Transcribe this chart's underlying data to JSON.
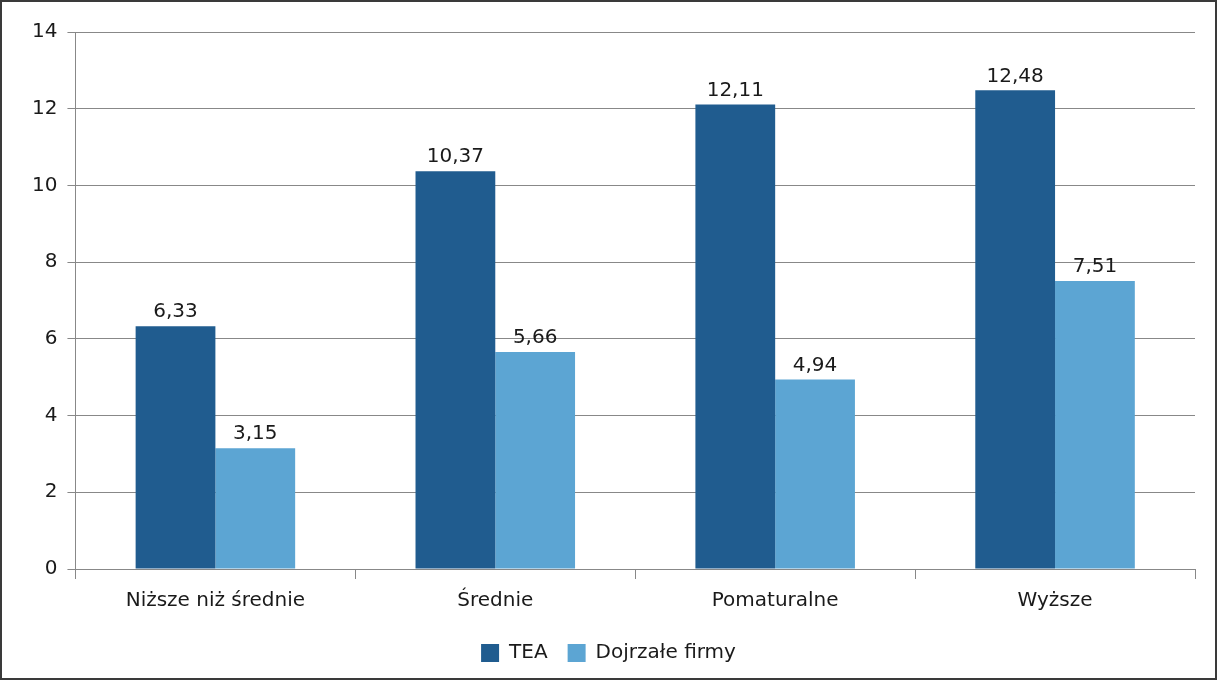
{
  "chart_data": {
    "type": "bar",
    "categories": [
      "Niższe niż średnie",
      "Średnie",
      "Pomaturalne",
      "Wyższe"
    ],
    "series": [
      {
        "name": "TEA",
        "color": "#205c8f",
        "values": [
          6.33,
          10.37,
          12.11,
          12.48
        ],
        "value_labels": [
          "6,33",
          "10,37",
          "12,11",
          "12,48"
        ]
      },
      {
        "name": "Dojrzałe firmy",
        "color": "#5ca5d3",
        "values": [
          3.15,
          5.66,
          4.94,
          7.51
        ],
        "value_labels": [
          "3,15",
          "5,66",
          "4,94",
          "7,51"
        ]
      }
    ],
    "ylim": [
      0,
      14
    ],
    "yticks": [
      0,
      2,
      4,
      6,
      8,
      10,
      12,
      14
    ],
    "grid": "y",
    "legend": "bottom"
  }
}
